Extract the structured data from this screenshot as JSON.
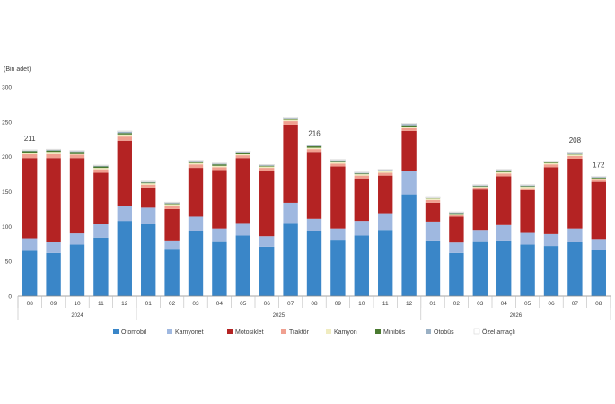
{
  "chart_data": {
    "type": "bar",
    "stacked": true,
    "title": "",
    "ylabel": "(Bin adet)",
    "xlabel": "",
    "ylim": [
      0,
      300
    ],
    "yticks": [
      "0",
      "50",
      "100",
      "150",
      "200",
      "250",
      "300"
    ],
    "grid": false,
    "legend_position": "bottom",
    "categories": [
      "08",
      "09",
      "10",
      "11",
      "12",
      "01",
      "02",
      "03",
      "04",
      "05",
      "06",
      "07",
      "08",
      "09",
      "10",
      "11",
      "12",
      "01",
      "02",
      "03",
      "04",
      "05",
      "06",
      "07",
      "08"
    ],
    "groups": [
      {
        "label": "2024",
        "start": 0,
        "end": 4
      },
      {
        "label": "2025",
        "start": 5,
        "end": 16
      },
      {
        "label": "2026",
        "start": 17,
        "end": 24
      }
    ],
    "series": [
      {
        "name": "Otomobil",
        "color": "#3a86c8",
        "values": [
          65,
          62,
          74,
          84,
          108,
          103,
          68,
          94,
          79,
          87,
          71,
          105,
          94,
          81,
          87,
          95,
          146,
          80,
          62,
          79,
          80,
          74,
          72,
          78,
          66
        ]
      },
      {
        "name": "Kamyonet",
        "color": "#9fb8e0",
        "values": [
          18,
          16,
          16,
          20,
          22,
          24,
          12,
          20,
          18,
          18,
          15,
          29,
          17,
          16,
          21,
          24,
          34,
          27,
          15,
          16,
          22,
          18,
          17,
          19,
          16
        ]
      },
      {
        "name": "Motosiklet",
        "color": "#b42323",
        "values": [
          115,
          120,
          108,
          73,
          93,
          29,
          45,
          70,
          84,
          93,
          93,
          112,
          96,
          89,
          61,
          54,
          57,
          27,
          37,
          58,
          70,
          60,
          96,
          100,
          82
        ]
      },
      {
        "name": "Traktör",
        "color": "#f0a090",
        "values": [
          6,
          7,
          5,
          5,
          6,
          4,
          5,
          5,
          4,
          4,
          5,
          5,
          4,
          4,
          4,
          4,
          4,
          4,
          3,
          3,
          4,
          3,
          4,
          4,
          4
        ]
      },
      {
        "name": "Kamyon",
        "color": "#f0ecc0",
        "values": [
          2,
          2,
          2,
          2,
          3,
          2,
          2,
          2,
          2,
          2,
          2,
          2,
          2,
          2,
          2,
          2,
          2,
          2,
          1,
          1,
          2,
          2,
          2,
          2,
          1
        ]
      },
      {
        "name": "Minibüs",
        "color": "#4a7a30",
        "values": [
          2,
          2,
          2,
          2,
          2,
          1,
          1,
          2,
          2,
          2,
          1,
          2,
          2,
          2,
          1,
          1,
          2,
          1,
          1,
          1,
          2,
          1,
          1,
          2,
          1
        ]
      },
      {
        "name": "Otobüs",
        "color": "#9ab0c4",
        "values": [
          1,
          1,
          1,
          1,
          2,
          1,
          1,
          1,
          1,
          1,
          1,
          1,
          1,
          1,
          1,
          1,
          2,
          1,
          1,
          1,
          1,
          1,
          1,
          1,
          1
        ]
      },
      {
        "name": "Özel amaçlı",
        "color": "#ffffff",
        "values": [
          1,
          1,
          1,
          1,
          1,
          1,
          1,
          1,
          1,
          1,
          1,
          1,
          1,
          1,
          1,
          1,
          1,
          1,
          1,
          1,
          1,
          1,
          1,
          1,
          1
        ]
      }
    ],
    "data_labels": [
      {
        "index": 0,
        "value": 211
      },
      {
        "index": 12,
        "value": 216
      },
      {
        "index": 23,
        "value": 208
      },
      {
        "index": 24,
        "value": 172
      }
    ]
  }
}
